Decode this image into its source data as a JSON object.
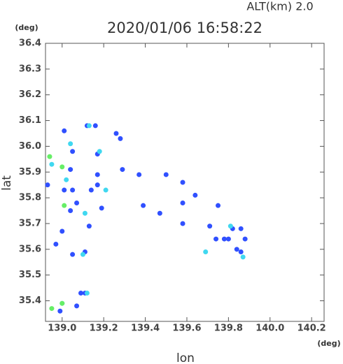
{
  "chart_data": {
    "type": "scatter",
    "title": "2020/01/06 16:58:22",
    "annotation": "ALT(km) 2.0",
    "x_label": "lon",
    "y_label": "lat",
    "x_unit": "(deg)",
    "y_unit": "(deg)",
    "xlim": [
      138.92,
      140.26
    ],
    "ylim": [
      35.32,
      36.4
    ],
    "xticks": [
      {
        "value": 139,
        "label": "139.0"
      },
      139.2,
      139.4,
      139.6,
      139.8,
      {
        "value": 140,
        "label": "140.0"
      },
      140.2
    ],
    "yticks": [
      35.4,
      35.5,
      35.6,
      35.7,
      35.8,
      35.9,
      {
        "value": 36,
        "label": "36.0"
      },
      36.1,
      36.2,
      36.3,
      36.4
    ],
    "series": [
      {
        "color": "#3050ff",
        "x": [
          139.01,
          139.05,
          139.12,
          139.16,
          139.26,
          139.28,
          139.17,
          139.29,
          139.17,
          139.04,
          139.01,
          139.05,
          139.07,
          139.14,
          139.17,
          138.93,
          139.04,
          139.19,
          139.13,
          139.0,
          138.97,
          139.11,
          139.05,
          139.09,
          139.07,
          138.99,
          139.11,
          139.39,
          139.47,
          139.58,
          139.58,
          139.64,
          139.71,
          139.74,
          139.78,
          139.8,
          139.84,
          139.86,
          139.82,
          139.88,
          139.86,
          139.75,
          139.58,
          139.37,
          139.5
        ],
        "values": [
          36.06,
          35.98,
          36.08,
          36.08,
          36.05,
          36.03,
          35.97,
          35.91,
          35.89,
          35.91,
          35.83,
          35.83,
          35.78,
          35.83,
          35.85,
          35.85,
          35.75,
          35.76,
          35.69,
          35.67,
          35.62,
          35.59,
          35.58,
          35.43,
          35.38,
          35.36,
          35.43,
          35.77,
          35.74,
          35.86,
          35.78,
          35.81,
          35.69,
          35.64,
          35.64,
          35.64,
          35.6,
          35.59,
          35.68,
          35.64,
          35.68,
          35.77,
          35.7,
          35.89,
          35.89
        ]
      },
      {
        "color": "#40d8f0",
        "x": [
          139.04,
          139.13,
          139.1,
          139.21,
          138.95,
          139.02,
          139.12,
          139.0,
          139.69,
          139.81,
          139.87,
          139.11,
          139.18
        ],
        "values": [
          36.01,
          36.08,
          35.58,
          35.83,
          35.93,
          35.87,
          35.43,
          35.39,
          35.59,
          35.69,
          35.57,
          35.74,
          35.98
        ]
      },
      {
        "color": "#66ee66",
        "x": [
          138.94,
          139.0,
          139.01,
          138.95,
          139.0
        ],
        "values": [
          35.96,
          35.92,
          35.77,
          35.37,
          35.39
        ]
      }
    ]
  }
}
